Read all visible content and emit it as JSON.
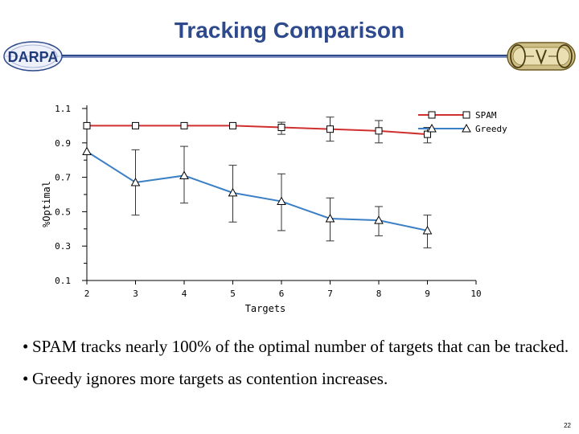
{
  "slide": {
    "title": "Tracking Comparison",
    "left_logo_text": "DARPA",
    "bullets": [
      "SPAM tracks nearly 100% of the optimal number of targets that can be tracked.",
      "Greedy ignores more targets as contention increases."
    ],
    "bullet_symbol": "•",
    "page_number": "22"
  },
  "chart_data": {
    "type": "line",
    "xlabel": "Targets",
    "ylabel": "%Optimal",
    "xlim": [
      2,
      10
    ],
    "ylim": [
      0.1,
      1.1
    ],
    "x_ticks": [
      "2",
      "3",
      "4",
      "5",
      "6",
      "7",
      "8",
      "9",
      "10"
    ],
    "y_ticks": [
      "1.1",
      "0.9",
      "0.7",
      "0.5",
      "0.3",
      "0.1"
    ],
    "legend_position": "top-right",
    "series": [
      {
        "name": "SPAM",
        "color": "#d03030",
        "marker": "square",
        "x": [
          2,
          3,
          4,
          5,
          6,
          7,
          8,
          9
        ],
        "values": [
          1.0,
          1.0,
          1.0,
          1.0,
          0.99,
          0.98,
          0.97,
          0.95
        ],
        "err_low": [
          1.0,
          1.0,
          1.0,
          1.0,
          0.95,
          0.91,
          0.9,
          0.9
        ],
        "err_high": [
          1.0,
          1.0,
          1.0,
          1.0,
          1.02,
          1.05,
          1.03,
          0.99
        ]
      },
      {
        "name": "Greedy",
        "color": "#3b7fc4",
        "marker": "triangle",
        "x": [
          2,
          3,
          4,
          5,
          6,
          7,
          8,
          9
        ],
        "values": [
          0.85,
          0.67,
          0.71,
          0.61,
          0.56,
          0.46,
          0.45,
          0.39
        ],
        "err_low": [
          0.85,
          0.48,
          0.55,
          0.44,
          0.39,
          0.33,
          0.36,
          0.29
        ],
        "err_high": [
          0.85,
          0.86,
          0.88,
          0.77,
          0.72,
          0.58,
          0.53,
          0.48
        ]
      }
    ]
  }
}
